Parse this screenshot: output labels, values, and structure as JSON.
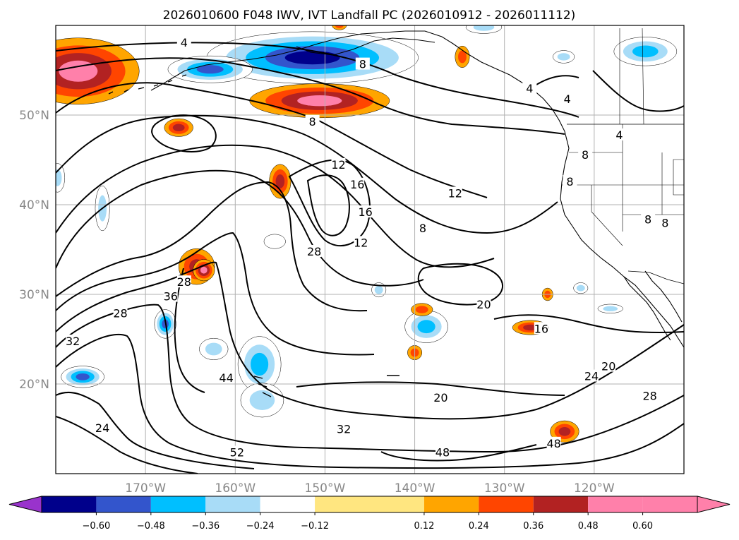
{
  "chart_data": {
    "type": "heatmap",
    "title": "2026010600 F048 IWV, IVT Landfall PC (2026010912 - 2026011112)",
    "x_ticks": [
      "170°W",
      "160°W",
      "150°W",
      "140°W",
      "130°W",
      "120°W"
    ],
    "x_tick_values": [
      -170,
      -160,
      -150,
      -140,
      -130,
      -120
    ],
    "y_ticks": [
      "50°N",
      "40°N",
      "30°N",
      "20°N"
    ],
    "y_tick_values": [
      50,
      40,
      30,
      20
    ],
    "xlim": [
      -180,
      -110
    ],
    "ylim": [
      10,
      60
    ],
    "grid": true,
    "colorbar": {
      "boundaries": [
        -0.72,
        -0.6,
        -0.48,
        -0.36,
        -0.24,
        -0.12,
        0.12,
        0.24,
        0.36,
        0.48,
        0.6,
        0.72
      ],
      "tick_labels": [
        "−0.60",
        "−0.48",
        "−0.36",
        "−0.24",
        "−0.12",
        "0.12",
        "0.24",
        "0.36",
        "0.48",
        "0.60"
      ],
      "tick_values": [
        -0.6,
        -0.48,
        -0.36,
        -0.24,
        -0.12,
        0.12,
        0.24,
        0.36,
        0.48,
        0.6
      ],
      "colors": [
        "#9933cc",
        "#00008b",
        "#3355cc",
        "#00bfff",
        "#a8dcf7",
        "#ffffff",
        "#ffe680",
        "#ffa500",
        "#ff4500",
        "#b22222",
        "#ff80aa"
      ],
      "extend": "both"
    },
    "contour_labels": [
      {
        "text": "4",
        "lon": -165.7,
        "lat": 58.1
      },
      {
        "text": "8",
        "lon": -145.8,
        "lat": 55.7
      },
      {
        "text": "8",
        "lon": -151.4,
        "lat": 49.3
      },
      {
        "text": "12",
        "lon": -148.5,
        "lat": 44.5
      },
      {
        "text": "16",
        "lon": -146.4,
        "lat": 42.3
      },
      {
        "text": "16",
        "lon": -145.5,
        "lat": 39.2
      },
      {
        "text": "8",
        "lon": -139.1,
        "lat": 37.4
      },
      {
        "text": "12",
        "lon": -135.5,
        "lat": 41.3
      },
      {
        "text": "4",
        "lon": -127.2,
        "lat": 53.0
      },
      {
        "text": "4",
        "lon": -123.0,
        "lat": 51.8
      },
      {
        "text": "12",
        "lon": -146.0,
        "lat": 35.8
      },
      {
        "text": "28",
        "lon": -151.2,
        "lat": 34.8
      },
      {
        "text": "28",
        "lon": -165.7,
        "lat": 31.4
      },
      {
        "text": "36",
        "lon": -167.2,
        "lat": 29.8
      },
      {
        "text": "28",
        "lon": -172.8,
        "lat": 27.9
      },
      {
        "text": "32",
        "lon": -178.1,
        "lat": 24.8
      },
      {
        "text": "24",
        "lon": -174.8,
        "lat": 15.1
      },
      {
        "text": "44",
        "lon": -161.0,
        "lat": 20.7
      },
      {
        "text": "52",
        "lon": -159.8,
        "lat": 12.4
      },
      {
        "text": "32",
        "lon": -147.9,
        "lat": 15.0
      },
      {
        "text": "48",
        "lon": -136.9,
        "lat": 12.4
      },
      {
        "text": "48",
        "lon": -124.5,
        "lat": 13.4
      },
      {
        "text": "20",
        "lon": -137.1,
        "lat": 18.5
      },
      {
        "text": "20",
        "lon": -132.3,
        "lat": 28.9
      },
      {
        "text": "16",
        "lon": -125.9,
        "lat": 26.2
      },
      {
        "text": "24",
        "lon": -120.3,
        "lat": 20.9
      },
      {
        "text": "20",
        "lon": -118.4,
        "lat": 22.0
      },
      {
        "text": "28",
        "lon": -113.8,
        "lat": 18.7
      },
      {
        "text": "8",
        "lon": -122.7,
        "lat": 42.6
      },
      {
        "text": "8",
        "lon": -121.0,
        "lat": 45.6
      },
      {
        "text": "4",
        "lon": -117.2,
        "lat": 47.8
      },
      {
        "text": "8",
        "lon": -114.0,
        "lat": 38.4
      },
      {
        "text": "8",
        "lon": -112.1,
        "lat": 38.0
      }
    ],
    "pc_blobs": [
      {
        "lon": -177.5,
        "lat": 54.9,
        "rx": 6.8,
        "ry": 3.7,
        "value": 0.52
      },
      {
        "lon": -150.6,
        "lat": 51.6,
        "rx": 7.8,
        "ry": 1.9,
        "value": 0.5
      },
      {
        "lon": -151.4,
        "lat": 56.4,
        "rx": 11.8,
        "ry": 2.9,
        "value": -0.62
      },
      {
        "lon": -162.8,
        "lat": 55.1,
        "rx": 4.7,
        "ry": 1.5,
        "value": -0.5
      },
      {
        "lon": -177.0,
        "lat": 20.8,
        "rx": 2.4,
        "ry": 1.2,
        "value": -0.52
      },
      {
        "lon": -157.3,
        "lat": 22.2,
        "rx": 2.4,
        "ry": 3.1,
        "value": -0.4
      },
      {
        "lon": -157.0,
        "lat": 18.2,
        "rx": 2.4,
        "ry": 1.9,
        "value": -0.3
      },
      {
        "lon": -162.4,
        "lat": 23.9,
        "rx": 1.6,
        "ry": 1.2,
        "value": -0.3
      },
      {
        "lon": -164.3,
        "lat": 33.1,
        "rx": 2.0,
        "ry": 2.0,
        "value": 0.42
      },
      {
        "lon": -163.5,
        "lat": 32.7,
        "rx": 1.2,
        "ry": 1.2,
        "value": 0.5
      },
      {
        "lon": -167.8,
        "lat": 26.7,
        "rx": 1.2,
        "ry": 1.6,
        "value": -0.5
      },
      {
        "lon": -174.8,
        "lat": 39.6,
        "rx": 0.8,
        "ry": 2.5,
        "value": -0.3
      },
      {
        "lon": -179.8,
        "lat": 43.0,
        "rx": 0.8,
        "ry": 1.6,
        "value": -0.3
      },
      {
        "lon": -166.3,
        "lat": 48.6,
        "rx": 1.6,
        "ry": 1.0,
        "value": 0.42
      },
      {
        "lon": -155.0,
        "lat": 42.6,
        "rx": 1.2,
        "ry": 1.9,
        "value": 0.38
      },
      {
        "lon": -138.7,
        "lat": 26.4,
        "rx": 2.4,
        "ry": 1.8,
        "value": -0.38
      },
      {
        "lon": -127.1,
        "lat": 26.3,
        "rx": 2.0,
        "ry": 0.8,
        "value": 0.4
      },
      {
        "lon": -123.3,
        "lat": 14.7,
        "rx": 1.6,
        "ry": 1.2,
        "value": 0.42
      },
      {
        "lon": -139.2,
        "lat": 28.3,
        "rx": 1.2,
        "ry": 0.7,
        "value": 0.3
      },
      {
        "lon": -144.0,
        "lat": 30.5,
        "rx": 0.8,
        "ry": 0.8,
        "value": -0.3
      },
      {
        "lon": -140.0,
        "lat": 23.5,
        "rx": 0.8,
        "ry": 0.8,
        "value": 0.28
      },
      {
        "lon": -118.2,
        "lat": 28.4,
        "rx": 1.4,
        "ry": 0.5,
        "value": -0.26
      },
      {
        "lon": -121.5,
        "lat": 30.7,
        "rx": 0.8,
        "ry": 0.6,
        "value": -0.26
      },
      {
        "lon": -125.2,
        "lat": 30.0,
        "rx": 0.6,
        "ry": 0.7,
        "value": 0.3
      },
      {
        "lon": -155.6,
        "lat": 35.9,
        "rx": 1.2,
        "ry": 0.8,
        "value": -0.2
      },
      {
        "lon": -123.4,
        "lat": 56.5,
        "rx": 1.2,
        "ry": 0.7,
        "value": -0.3
      },
      {
        "lon": -114.3,
        "lat": 57.1,
        "rx": 3.5,
        "ry": 1.6,
        "value": -0.4
      },
      {
        "lon": -132.3,
        "lat": 59.8,
        "rx": 2.0,
        "ry": 0.7,
        "value": -0.3
      },
      {
        "lon": -134.7,
        "lat": 56.5,
        "rx": 0.8,
        "ry": 1.2,
        "value": 0.3
      },
      {
        "lon": -148.4,
        "lat": 60.0,
        "rx": 0.8,
        "ry": 0.5,
        "value": 0.28
      }
    ]
  }
}
